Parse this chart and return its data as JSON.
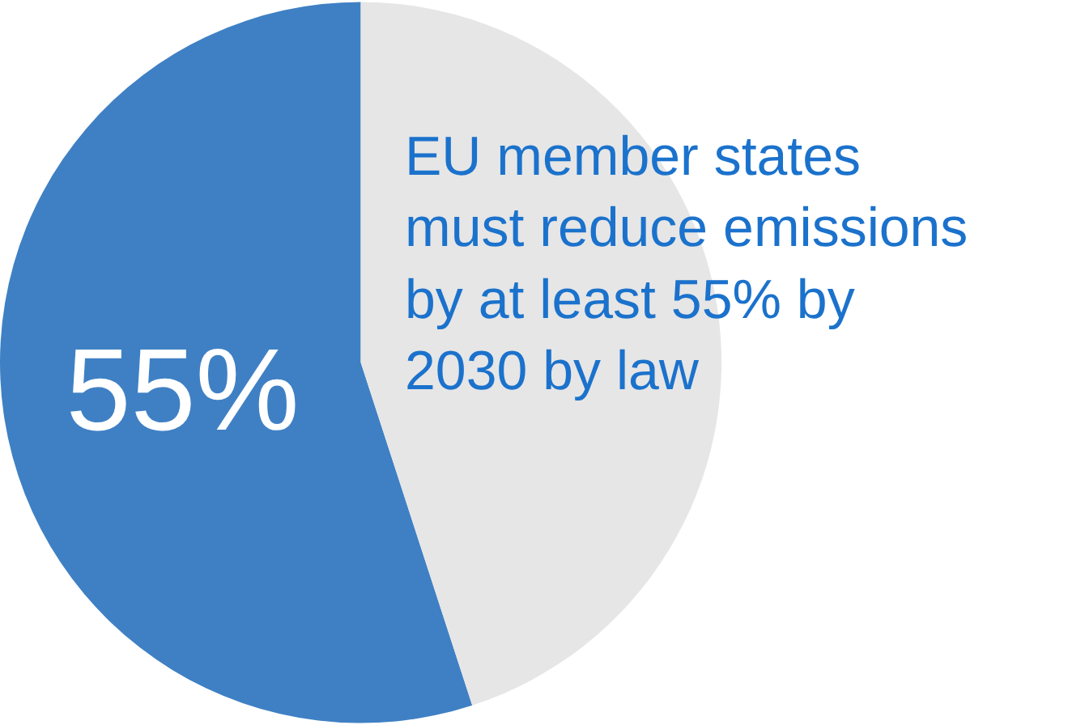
{
  "chart_data": {
    "type": "pie",
    "categories": [
      null,
      null
    ],
    "values": [
      55,
      45
    ],
    "colors": [
      "#3f80c4",
      "#e6e6e6"
    ],
    "value_labels": [
      "55%",
      null
    ],
    "annotations": [
      "EU member states\nmust reduce emissions\nby at least 55% by\n2030 by law"
    ],
    "legend": false
  }
}
